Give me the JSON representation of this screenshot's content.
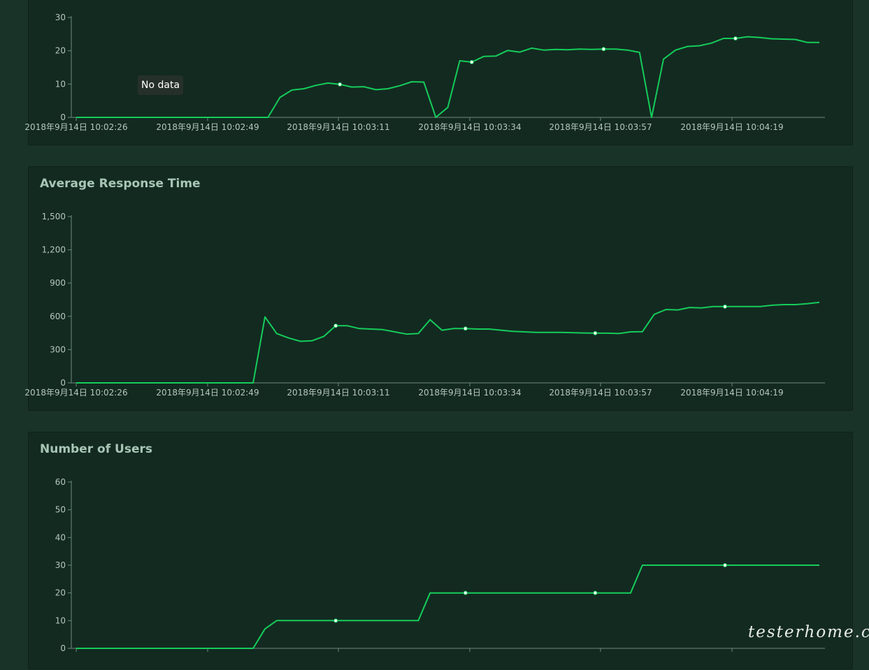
{
  "colors": {
    "page_background": "#1a3329",
    "panel_background": "#132a21",
    "line": "#15cc5a",
    "axis": "#6c8a7b",
    "tick_text": "#b4c7bd"
  },
  "tooltip": {
    "text": "No data"
  },
  "watermark": {
    "text": "testerhome.com"
  },
  "charts": [
    {
      "id": "rps",
      "title": "",
      "chart_data": {
        "type": "line",
        "title": "",
        "ylim": [
          0,
          30
        ],
        "yticks": [
          0,
          10,
          20,
          30
        ],
        "ytick_labels": [
          "0",
          "10",
          "20",
          "30"
        ],
        "xtick_labels": [
          "2018年9月14日 10:02:26",
          "2018年9月14日 10:02:49",
          "2018年9月14日 10:03:11",
          "2018年9月14日 10:03:34",
          "2018年9月14日 10:03:57",
          "2018年9月14日 10:04:19"
        ],
        "grid": false,
        "series": [
          {
            "values": [
              0,
              0,
              0,
              0,
              0,
              0,
              0,
              0,
              0,
              0,
              0,
              0,
              0,
              0,
              0,
              0,
              0,
              6,
              8.2,
              8.6,
              9.6,
              10.3,
              9.9,
              9.1,
              9.2,
              8.3,
              8.6,
              9.5,
              10.7,
              10.6,
              0,
              3,
              17,
              16.6,
              18.3,
              18.4,
              20.1,
              19.6,
              20.8,
              20.2,
              20.4,
              20.3,
              20.5,
              20.4,
              20.5,
              20.5,
              20.2,
              19.5,
              0,
              17.5,
              20.2,
              21.3,
              21.5,
              22.3,
              23.7,
              23.7,
              24.2,
              24,
              23.6,
              23.5,
              23.4,
              22.5,
              22.5
            ],
            "markers": [
              22,
              33,
              44,
              55
            ]
          }
        ]
      }
    },
    {
      "id": "response_time",
      "title": "Average Response Time",
      "chart_data": {
        "type": "line",
        "title": "Average Response Time",
        "ylim": [
          0,
          1500
        ],
        "yticks": [
          0,
          300,
          600,
          900,
          1200,
          1500
        ],
        "ytick_labels": [
          "0",
          "300",
          "600",
          "900",
          "1,200",
          "1,500"
        ],
        "xtick_labels": [
          "2018年9月14日 10:02:26",
          "2018年9月14日 10:02:49",
          "2018年9月14日 10:03:11",
          "2018年9月14日 10:03:34",
          "2018年9月14日 10:03:57",
          "2018年9月14日 10:04:19"
        ],
        "grid": false,
        "series": [
          {
            "values": [
              0,
              0,
              0,
              0,
              0,
              0,
              0,
              0,
              0,
              0,
              0,
              0,
              0,
              0,
              0,
              0,
              595,
              445,
              405,
              375,
              380,
              420,
              515,
              515,
              490,
              485,
              480,
              460,
              440,
              445,
              570,
              475,
              490,
              490,
              485,
              485,
              475,
              465,
              460,
              455,
              455,
              455,
              453,
              450,
              448,
              448,
              445,
              460,
              462,
              618,
              662,
              658,
              680,
              676,
              688,
              688,
              688,
              688,
              688,
              700,
              706,
              706,
              715,
              726
            ],
            "markers": [
              22,
              33,
              44,
              55
            ]
          }
        ]
      }
    },
    {
      "id": "users",
      "title": "Number of Users",
      "chart_data": {
        "type": "line",
        "title": "Number of Users",
        "ylim": [
          0,
          60
        ],
        "yticks": [
          0,
          10,
          20,
          30,
          40,
          50,
          60
        ],
        "ytick_labels": [
          "0",
          "10",
          "20",
          "30",
          "40",
          "50",
          "60"
        ],
        "xtick_labels": [
          "",
          "",
          "",
          "",
          "",
          ""
        ],
        "grid": false,
        "series": [
          {
            "values": [
              0,
              0,
              0,
              0,
              0,
              0,
              0,
              0,
              0,
              0,
              0,
              0,
              0,
              0,
              0,
              0,
              7,
              10,
              10,
              10,
              10,
              10,
              10,
              10,
              10,
              10,
              10,
              10,
              10,
              10,
              20,
              20,
              20,
              20,
              20,
              20,
              20,
              20,
              20,
              20,
              20,
              20,
              20,
              20,
              20,
              20,
              20,
              20,
              30,
              30,
              30,
              30,
              30,
              30,
              30,
              30,
              30,
              30,
              30,
              30,
              30,
              30,
              30,
              30
            ],
            "markers": [
              22,
              33,
              44,
              55
            ]
          }
        ]
      }
    }
  ]
}
